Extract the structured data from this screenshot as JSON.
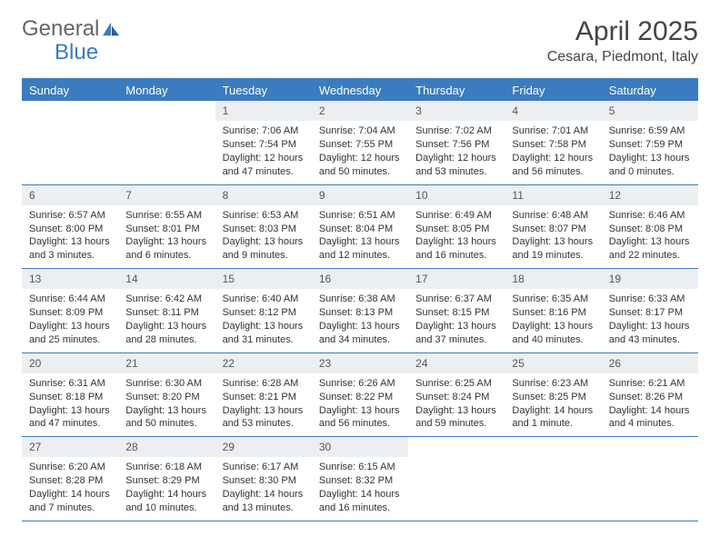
{
  "logo": {
    "text1": "General",
    "text2": "Blue"
  },
  "title": "April 2025",
  "location": "Cesara, Piedmont, Italy",
  "colors": {
    "header_bg": "#3b7bbf",
    "header_text": "#ffffff",
    "daynum_bg": "#eceff1",
    "border": "#3b7bbf",
    "text": "#333333",
    "background": "#ffffff"
  },
  "day_names": [
    "Sunday",
    "Monday",
    "Tuesday",
    "Wednesday",
    "Thursday",
    "Friday",
    "Saturday"
  ],
  "weeks": [
    [
      null,
      null,
      {
        "n": "1",
        "sr": "Sunrise: 7:06 AM",
        "ss": "Sunset: 7:54 PM",
        "dl": "Daylight: 12 hours and 47 minutes."
      },
      {
        "n": "2",
        "sr": "Sunrise: 7:04 AM",
        "ss": "Sunset: 7:55 PM",
        "dl": "Daylight: 12 hours and 50 minutes."
      },
      {
        "n": "3",
        "sr": "Sunrise: 7:02 AM",
        "ss": "Sunset: 7:56 PM",
        "dl": "Daylight: 12 hours and 53 minutes."
      },
      {
        "n": "4",
        "sr": "Sunrise: 7:01 AM",
        "ss": "Sunset: 7:58 PM",
        "dl": "Daylight: 12 hours and 56 minutes."
      },
      {
        "n": "5",
        "sr": "Sunrise: 6:59 AM",
        "ss": "Sunset: 7:59 PM",
        "dl": "Daylight: 13 hours and 0 minutes."
      }
    ],
    [
      {
        "n": "6",
        "sr": "Sunrise: 6:57 AM",
        "ss": "Sunset: 8:00 PM",
        "dl": "Daylight: 13 hours and 3 minutes."
      },
      {
        "n": "7",
        "sr": "Sunrise: 6:55 AM",
        "ss": "Sunset: 8:01 PM",
        "dl": "Daylight: 13 hours and 6 minutes."
      },
      {
        "n": "8",
        "sr": "Sunrise: 6:53 AM",
        "ss": "Sunset: 8:03 PM",
        "dl": "Daylight: 13 hours and 9 minutes."
      },
      {
        "n": "9",
        "sr": "Sunrise: 6:51 AM",
        "ss": "Sunset: 8:04 PM",
        "dl": "Daylight: 13 hours and 12 minutes."
      },
      {
        "n": "10",
        "sr": "Sunrise: 6:49 AM",
        "ss": "Sunset: 8:05 PM",
        "dl": "Daylight: 13 hours and 16 minutes."
      },
      {
        "n": "11",
        "sr": "Sunrise: 6:48 AM",
        "ss": "Sunset: 8:07 PM",
        "dl": "Daylight: 13 hours and 19 minutes."
      },
      {
        "n": "12",
        "sr": "Sunrise: 6:46 AM",
        "ss": "Sunset: 8:08 PM",
        "dl": "Daylight: 13 hours and 22 minutes."
      }
    ],
    [
      {
        "n": "13",
        "sr": "Sunrise: 6:44 AM",
        "ss": "Sunset: 8:09 PM",
        "dl": "Daylight: 13 hours and 25 minutes."
      },
      {
        "n": "14",
        "sr": "Sunrise: 6:42 AM",
        "ss": "Sunset: 8:11 PM",
        "dl": "Daylight: 13 hours and 28 minutes."
      },
      {
        "n": "15",
        "sr": "Sunrise: 6:40 AM",
        "ss": "Sunset: 8:12 PM",
        "dl": "Daylight: 13 hours and 31 minutes."
      },
      {
        "n": "16",
        "sr": "Sunrise: 6:38 AM",
        "ss": "Sunset: 8:13 PM",
        "dl": "Daylight: 13 hours and 34 minutes."
      },
      {
        "n": "17",
        "sr": "Sunrise: 6:37 AM",
        "ss": "Sunset: 8:15 PM",
        "dl": "Daylight: 13 hours and 37 minutes."
      },
      {
        "n": "18",
        "sr": "Sunrise: 6:35 AM",
        "ss": "Sunset: 8:16 PM",
        "dl": "Daylight: 13 hours and 40 minutes."
      },
      {
        "n": "19",
        "sr": "Sunrise: 6:33 AM",
        "ss": "Sunset: 8:17 PM",
        "dl": "Daylight: 13 hours and 43 minutes."
      }
    ],
    [
      {
        "n": "20",
        "sr": "Sunrise: 6:31 AM",
        "ss": "Sunset: 8:18 PM",
        "dl": "Daylight: 13 hours and 47 minutes."
      },
      {
        "n": "21",
        "sr": "Sunrise: 6:30 AM",
        "ss": "Sunset: 8:20 PM",
        "dl": "Daylight: 13 hours and 50 minutes."
      },
      {
        "n": "22",
        "sr": "Sunrise: 6:28 AM",
        "ss": "Sunset: 8:21 PM",
        "dl": "Daylight: 13 hours and 53 minutes."
      },
      {
        "n": "23",
        "sr": "Sunrise: 6:26 AM",
        "ss": "Sunset: 8:22 PM",
        "dl": "Daylight: 13 hours and 56 minutes."
      },
      {
        "n": "24",
        "sr": "Sunrise: 6:25 AM",
        "ss": "Sunset: 8:24 PM",
        "dl": "Daylight: 13 hours and 59 minutes."
      },
      {
        "n": "25",
        "sr": "Sunrise: 6:23 AM",
        "ss": "Sunset: 8:25 PM",
        "dl": "Daylight: 14 hours and 1 minute."
      },
      {
        "n": "26",
        "sr": "Sunrise: 6:21 AM",
        "ss": "Sunset: 8:26 PM",
        "dl": "Daylight: 14 hours and 4 minutes."
      }
    ],
    [
      {
        "n": "27",
        "sr": "Sunrise: 6:20 AM",
        "ss": "Sunset: 8:28 PM",
        "dl": "Daylight: 14 hours and 7 minutes."
      },
      {
        "n": "28",
        "sr": "Sunrise: 6:18 AM",
        "ss": "Sunset: 8:29 PM",
        "dl": "Daylight: 14 hours and 10 minutes."
      },
      {
        "n": "29",
        "sr": "Sunrise: 6:17 AM",
        "ss": "Sunset: 8:30 PM",
        "dl": "Daylight: 14 hours and 13 minutes."
      },
      {
        "n": "30",
        "sr": "Sunrise: 6:15 AM",
        "ss": "Sunset: 8:32 PM",
        "dl": "Daylight: 14 hours and 16 minutes."
      },
      null,
      null,
      null
    ]
  ]
}
